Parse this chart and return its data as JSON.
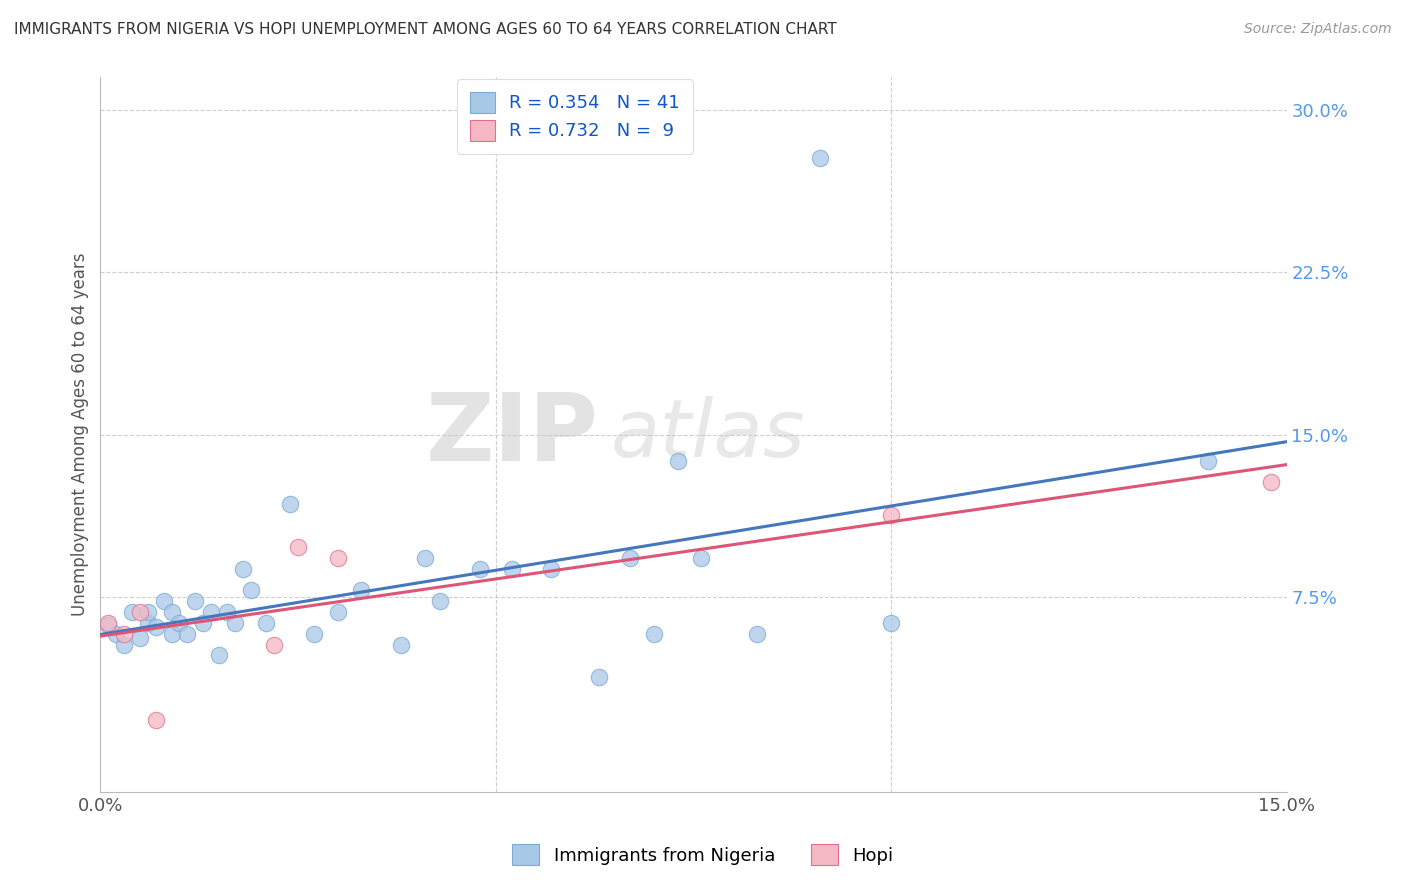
{
  "title": "IMMIGRANTS FROM NIGERIA VS HOPI UNEMPLOYMENT AMONG AGES 60 TO 64 YEARS CORRELATION CHART",
  "source": "Source: ZipAtlas.com",
  "ylabel": "Unemployment Among Ages 60 to 64 years",
  "x_min": 0.0,
  "x_max": 0.15,
  "y_min": -0.015,
  "y_max": 0.315,
  "legend_r1": "R = 0.354",
  "legend_n1": "N = 41",
  "legend_r2": "R = 0.732",
  "legend_n2": "N =  9",
  "color_blue": "#A8C8E8",
  "color_pink": "#F4B8C4",
  "edge_blue": "#7AAAD0",
  "edge_pink": "#E07090",
  "line_blue": "#4477BB",
  "line_pink": "#DD5577",
  "watermark_zip": "ZIP",
  "watermark_atlas": "atlas",
  "background_color": "#FFFFFF",
  "grid_color": "#BBBBBB",
  "blue_x": [
    0.001,
    0.002,
    0.003,
    0.004,
    0.005,
    0.006,
    0.006,
    0.007,
    0.008,
    0.009,
    0.009,
    0.01,
    0.011,
    0.012,
    0.013,
    0.014,
    0.015,
    0.016,
    0.017,
    0.018,
    0.019,
    0.021,
    0.024,
    0.027,
    0.03,
    0.033,
    0.038,
    0.041,
    0.043,
    0.048,
    0.052,
    0.057,
    0.063,
    0.067,
    0.07,
    0.073,
    0.076,
    0.083,
    0.091,
    0.1,
    0.14
  ],
  "blue_y": [
    0.062,
    0.058,
    0.053,
    0.068,
    0.056,
    0.063,
    0.068,
    0.061,
    0.073,
    0.058,
    0.068,
    0.063,
    0.058,
    0.073,
    0.063,
    0.068,
    0.048,
    0.068,
    0.063,
    0.088,
    0.078,
    0.063,
    0.118,
    0.058,
    0.068,
    0.078,
    0.053,
    0.093,
    0.073,
    0.088,
    0.088,
    0.088,
    0.038,
    0.093,
    0.058,
    0.138,
    0.093,
    0.058,
    0.278,
    0.063,
    0.138
  ],
  "pink_x": [
    0.001,
    0.003,
    0.005,
    0.007,
    0.022,
    0.025,
    0.03,
    0.1,
    0.148
  ],
  "pink_y": [
    0.063,
    0.058,
    0.068,
    0.018,
    0.053,
    0.098,
    0.093,
    0.113,
    0.128
  ]
}
